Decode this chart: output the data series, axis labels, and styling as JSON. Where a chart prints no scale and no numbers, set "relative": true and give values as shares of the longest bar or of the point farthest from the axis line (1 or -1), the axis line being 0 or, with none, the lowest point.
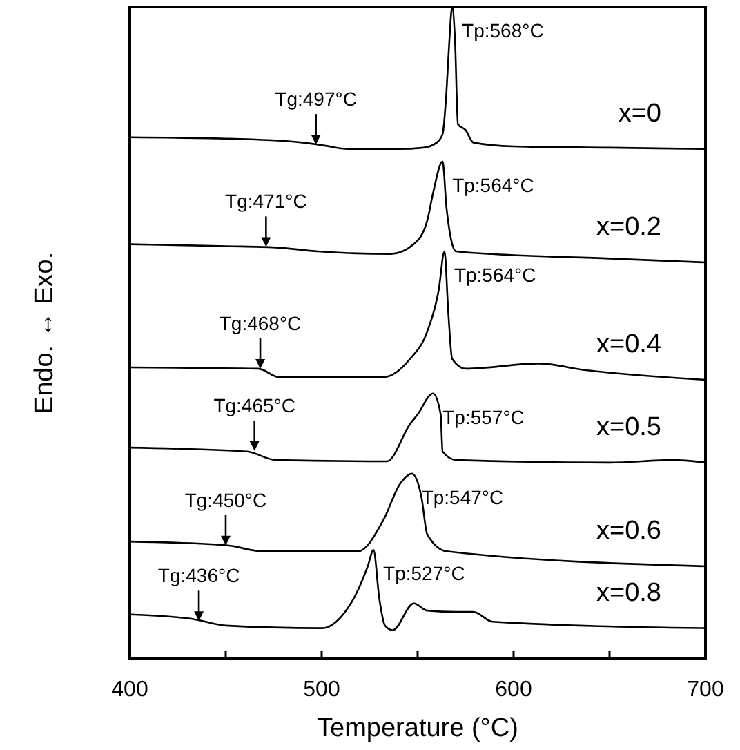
{
  "chart_data": {
    "type": "line",
    "xlabel": "Temperature (°C)",
    "ylabel": "Endo. ↔ Exo.",
    "relative": true,
    "xlim": [
      400,
      700
    ],
    "xticks": [
      400,
      {
        "value": 450,
        "label": null
      },
      500,
      {
        "value": 550,
        "label": null
      },
      600,
      {
        "value": 650,
        "label": null
      },
      700
    ],
    "series": [
      {
        "name": "x=0",
        "color": "#000000",
        "x": [
          400,
          450,
          490,
          500,
          514,
          540,
          553,
          560,
          563,
          565,
          566.5,
          568,
          569.5,
          571,
          575,
          579,
          600,
          650,
          700
        ],
        "values": [
          0.8,
          0.798,
          0.792,
          0.788,
          0.782,
          0.782,
          0.784,
          0.792,
          0.805,
          0.869,
          0.947,
          1.0,
          0.947,
          0.82,
          0.811,
          0.792,
          0.786,
          0.784,
          0.782
        ]
      },
      {
        "name": "x=0.2",
        "color": "#000000",
        "x": [
          400,
          450,
          476,
          498,
          536,
          548,
          555,
          558,
          563,
          565,
          567,
          570,
          589,
          650,
          700
        ],
        "values": [
          0.636,
          0.633,
          0.631,
          0.625,
          0.621,
          0.636,
          0.672,
          0.714,
          0.763,
          0.693,
          0.65,
          0.625,
          0.621,
          0.614,
          0.608
        ]
      },
      {
        "name": "x=0.4",
        "color": "#000000",
        "x": [
          400,
          467,
          478,
          532,
          546,
          555,
          561,
          564,
          566,
          568,
          575,
          613,
          637,
          700
        ],
        "values": [
          0.447,
          0.445,
          0.432,
          0.432,
          0.46,
          0.502,
          0.566,
          0.625,
          0.53,
          0.46,
          0.445,
          0.453,
          0.443,
          0.428
        ]
      },
      {
        "name": "x=0.5",
        "color": "#000000",
        "x": [
          400,
          461,
          476,
          534,
          546,
          550,
          558,
          562,
          563,
          570,
          650,
          683,
          700
        ],
        "values": [
          0.324,
          0.318,
          0.305,
          0.303,
          0.36,
          0.375,
          0.407,
          0.375,
          0.318,
          0.305,
          0.301,
          0.305,
          0.301
        ]
      },
      {
        "name": "x=0.6",
        "color": "#000000",
        "x": [
          400,
          451,
          469,
          519,
          532,
          541,
          547,
          552,
          555,
          565,
          700
        ],
        "values": [
          0.18,
          0.174,
          0.165,
          0.165,
          0.212,
          0.269,
          0.284,
          0.248,
          0.191,
          0.165,
          0.142
        ]
      },
      {
        "name": "x=0.8",
        "color": "#000000",
        "x": [
          400,
          433,
          450,
          500,
          510,
          519,
          524,
          527,
          530,
          533,
          537,
          548,
          555,
          570,
          579,
          589,
          700
        ],
        "values": [
          0.068,
          0.061,
          0.051,
          0.047,
          0.064,
          0.106,
          0.142,
          0.167,
          0.093,
          0.051,
          0.044,
          0.085,
          0.074,
          0.072,
          0.072,
          0.057,
          0.047
        ]
      }
    ],
    "annotations": [
      {
        "text": "Tg:497°C",
        "x": 497,
        "y": 0.789
      },
      {
        "text": "Tp:568°C",
        "x": 568,
        "y": 1.0
      },
      {
        "text": "Tg:471°C",
        "x": 471,
        "y": 0.632
      },
      {
        "text": "Tp:564°C",
        "x": 563,
        "y": 0.763
      },
      {
        "text": "Tg:468°C",
        "x": 468,
        "y": 0.445
      },
      {
        "text": "Tp:564°C",
        "x": 564,
        "y": 0.625
      },
      {
        "text": "Tg:465°C",
        "x": 465,
        "y": 0.319
      },
      {
        "text": "Tp:557°C",
        "x": 558,
        "y": 0.407
      },
      {
        "text": "Tg:450°C",
        "x": 450,
        "y": 0.174
      },
      {
        "text": "Tp:547°C",
        "x": 547,
        "y": 0.284
      },
      {
        "text": "Tg:436°C",
        "x": 436,
        "y": 0.058
      },
      {
        "text": "Tp:527°C",
        "x": 527,
        "y": 0.167
      }
    ]
  }
}
